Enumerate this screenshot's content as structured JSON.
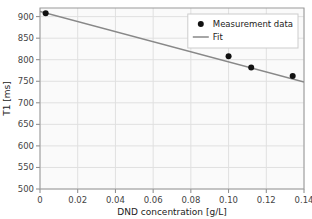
{
  "chart_data": {
    "type": "scatter",
    "xlabel": "DND concentration [g/L]",
    "ylabel": "T1 [ms]",
    "series": [
      {
        "name": "Measurement data",
        "type": "scatter",
        "color": "#111111",
        "x": [
          0.003,
          0.1,
          0.112,
          0.134
        ],
        "values": [
          908,
          808,
          782,
          762
        ]
      },
      {
        "name": "Fit",
        "type": "line",
        "color": "#888888",
        "x": [
          0.0,
          0.14
        ],
        "values": [
          912,
          748
        ]
      }
    ],
    "xlim": [
      0,
      0.14
    ],
    "ylim": [
      500,
      920
    ],
    "xticks": [
      0,
      0.02,
      0.04,
      0.06,
      0.08,
      {
        "value": 0.1,
        "label": "0.10"
      },
      0.12,
      0.14
    ],
    "yticks": [
      500,
      550,
      600,
      650,
      700,
      750,
      800,
      850,
      900
    ],
    "grid": true,
    "legend": "upper right"
  }
}
